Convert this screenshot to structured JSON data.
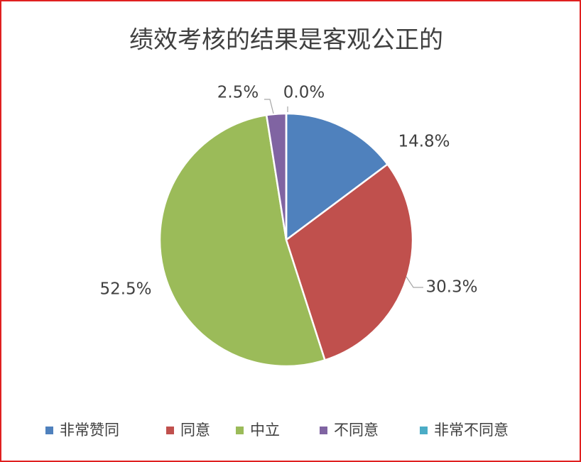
{
  "chart_data": {
    "type": "pie",
    "title": "绩效考核的结果是客观公正的",
    "categories": [
      "非常赞同",
      "同意",
      "中立",
      "不同意",
      "非常不同意"
    ],
    "values": [
      14.8,
      30.3,
      52.5,
      2.5,
      0.0
    ],
    "value_labels": [
      "14.8%",
      "30.3%",
      "52.5%",
      "2.5%",
      "0.0%"
    ],
    "colors": [
      "#4f81bd",
      "#c0504d",
      "#9bbb59",
      "#8064a2",
      "#4bacc6"
    ],
    "legend": "bottom"
  }
}
